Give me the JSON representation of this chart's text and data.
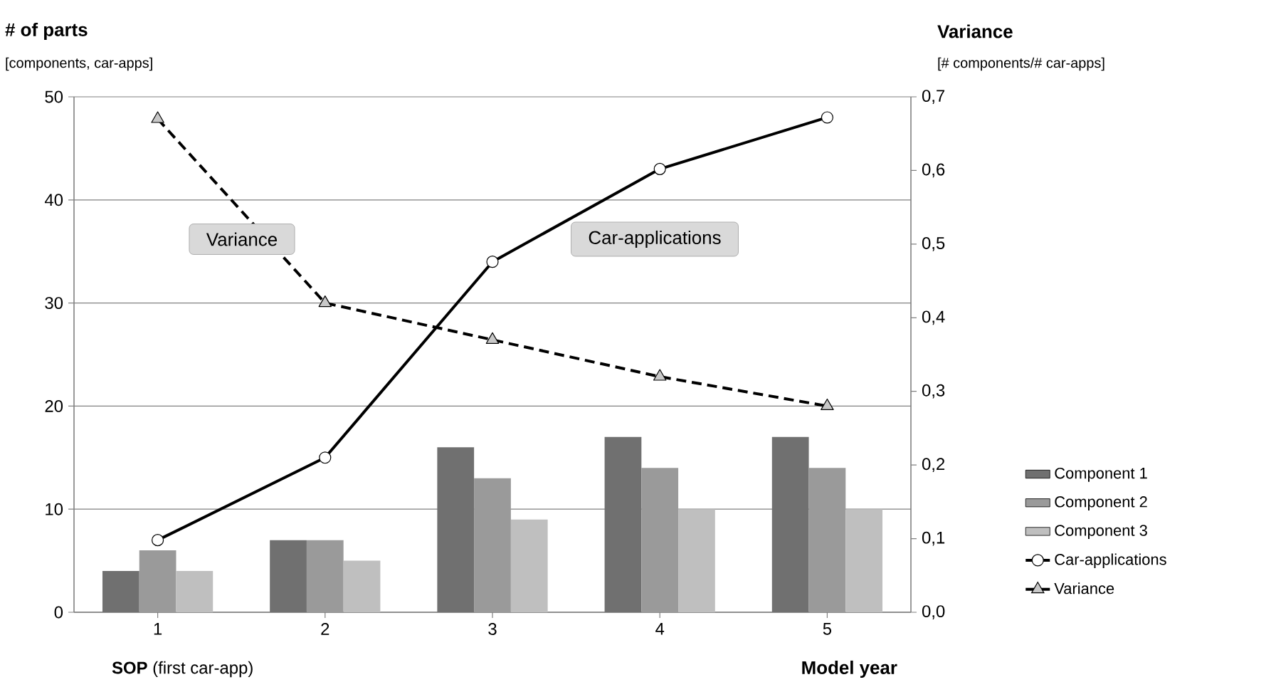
{
  "chart_data": {
    "type": "bar",
    "ylabel": "# of parts",
    "y2label": "Variance",
    "xlabel": "Model year",
    "annotations": [
      "[components, car-apps]",
      "[# components/# car-apps]",
      "**SOP** (first car-app)",
      "Variance",
      "Car-applications"
    ],
    "categories": [
      "1",
      "2",
      "3",
      "4",
      "5"
    ],
    "series": [
      {
        "name": "Component 1",
        "color": "#707070",
        "values": [
          4,
          7,
          16,
          17,
          17
        ]
      },
      {
        "name": "Component 2",
        "color": "#9a9a9a",
        "values": [
          6,
          7,
          13,
          14,
          14
        ]
      },
      {
        "name": "Component 3",
        "color": "#bfbfbf",
        "values": [
          4,
          5,
          9,
          10,
          10
        ]
      },
      {
        "name": "Car-applications",
        "type": "line",
        "color": "#000000",
        "marker": "circle",
        "line_style": "solid",
        "values": [
          7,
          15,
          34,
          43,
          48
        ]
      },
      {
        "name": "Variance",
        "type": "line",
        "axis": "y2",
        "color": "#000000",
        "marker": "triangle",
        "line_style": "dashed",
        "values": [
          0.67,
          0.42,
          0.37,
          0.32,
          0.28
        ]
      }
    ],
    "ylim": [
      0,
      50
    ],
    "yticks": [
      0,
      10,
      20,
      30,
      40,
      50
    ],
    "y2lim": [
      0,
      0.7
    ],
    "y2ticks": [
      {
        "value": 0,
        "label": "0,0"
      },
      {
        "value": 0.1,
        "label": "0,1"
      },
      {
        "value": 0.2,
        "label": "0,2"
      },
      {
        "value": 0.3,
        "label": "0,3"
      },
      {
        "value": 0.4,
        "label": "0,4"
      },
      {
        "value": 0.5,
        "label": "0,5"
      },
      {
        "value": 0.6,
        "label": "0,6"
      },
      {
        "value": 0.7,
        "label": "0,7"
      }
    ],
    "grid": "y",
    "legend": "right"
  }
}
